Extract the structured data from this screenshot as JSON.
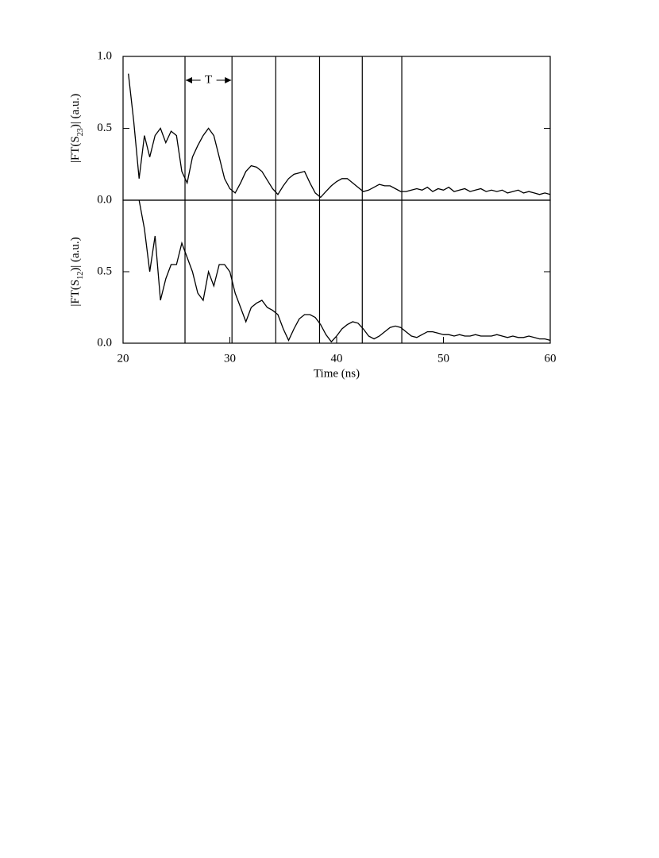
{
  "chart_data": [
    {
      "type": "line",
      "color": "#000000",
      "ylabel": {
        "pre": "|FT(S",
        "sub": "23",
        "post": ")|  (a.u.)"
      },
      "x": [
        20.5,
        21,
        21.5,
        22,
        22.5,
        23,
        23.5,
        24,
        24.5,
        25,
        25.5,
        26,
        26.5,
        27,
        27.5,
        28,
        28.5,
        29,
        29.5,
        30,
        30.5,
        31,
        31.5,
        32,
        32.5,
        33,
        33.5,
        34,
        34.5,
        35,
        35.5,
        36,
        36.5,
        37,
        37.5,
        38,
        38.5,
        39,
        39.5,
        40,
        40.5,
        41,
        41.5,
        42,
        42.5,
        43,
        43.5,
        44,
        44.5,
        45,
        45.5,
        46,
        46.5,
        47,
        47.5,
        48,
        48.5,
        49,
        49.5,
        50,
        50.5,
        51,
        51.5,
        52,
        52.5,
        53,
        53.5,
        54,
        54.5,
        55,
        55.5,
        56,
        56.5,
        57,
        57.5,
        58,
        58.5,
        59,
        59.5,
        60
      ],
      "values": [
        0.88,
        0.55,
        0.15,
        0.45,
        0.3,
        0.45,
        0.5,
        0.4,
        0.48,
        0.45,
        0.2,
        0.12,
        0.3,
        0.38,
        0.45,
        0.5,
        0.45,
        0.3,
        0.15,
        0.08,
        0.05,
        0.12,
        0.2,
        0.24,
        0.23,
        0.2,
        0.14,
        0.08,
        0.04,
        0.1,
        0.15,
        0.18,
        0.19,
        0.2,
        0.12,
        0.05,
        0.02,
        0.06,
        0.1,
        0.13,
        0.15,
        0.15,
        0.12,
        0.09,
        0.06,
        0.07,
        0.09,
        0.11,
        0.1,
        0.1,
        0.08,
        0.06,
        0.06,
        0.07,
        0.08,
        0.07,
        0.09,
        0.06,
        0.08,
        0.07,
        0.09,
        0.06,
        0.07,
        0.08,
        0.06,
        0.07,
        0.08,
        0.06,
        0.07,
        0.06,
        0.07,
        0.05,
        0.06,
        0.07,
        0.05,
        0.06,
        0.05,
        0.04,
        0.05,
        0.04
      ],
      "xlim": [
        20,
        60
      ],
      "ylim": [
        0,
        1.0
      ],
      "yticks": [
        {
          "value": 0,
          "label": "0.0"
        },
        {
          "value": 0.5,
          "label": "0.5"
        },
        {
          "value": 1.0,
          "label": "1.0"
        }
      ],
      "vlines": [
        25.8,
        30.2,
        34.3,
        38.4,
        42.4,
        46.1
      ],
      "annotation": "T"
    },
    {
      "type": "line",
      "color": "#000000",
      "ylabel": {
        "pre": "|FT(S",
        "sub": "12",
        "post": ")|  (a.u.)"
      },
      "xlabel": "Time (ns)",
      "x": [
        20.5,
        21,
        21.5,
        22,
        22.5,
        23,
        23.5,
        24,
        24.5,
        25,
        25.5,
        26,
        26.5,
        27,
        27.5,
        28,
        28.5,
        29,
        29.5,
        30,
        30.5,
        31,
        31.5,
        32,
        32.5,
        33,
        33.5,
        34,
        34.5,
        35,
        35.5,
        36,
        36.5,
        37,
        37.5,
        38,
        38.5,
        39,
        39.5,
        40,
        40.5,
        41,
        41.5,
        42,
        42.5,
        43,
        43.5,
        44,
        44.5,
        45,
        45.5,
        46,
        46.5,
        47,
        47.5,
        48,
        48.5,
        49,
        49.5,
        50,
        50.5,
        51,
        51.5,
        52,
        52.5,
        53,
        53.5,
        54,
        54.5,
        55,
        55.5,
        56,
        56.5,
        57,
        57.5,
        58,
        58.5,
        59,
        59.5,
        60
      ],
      "values": [
        null,
        null,
        1.0,
        0.8,
        0.5,
        0.75,
        0.3,
        0.45,
        0.55,
        0.55,
        0.7,
        0.6,
        0.5,
        0.35,
        0.3,
        0.5,
        0.4,
        0.55,
        0.55,
        0.5,
        0.35,
        0.25,
        0.15,
        0.25,
        0.28,
        0.3,
        0.25,
        0.23,
        0.2,
        0.1,
        0.02,
        0.1,
        0.17,
        0.2,
        0.2,
        0.18,
        0.13,
        0.06,
        0.01,
        0.05,
        0.1,
        0.13,
        0.15,
        0.14,
        0.1,
        0.05,
        0.03,
        0.05,
        0.08,
        0.11,
        0.12,
        0.11,
        0.08,
        0.05,
        0.04,
        0.06,
        0.08,
        0.08,
        0.07,
        0.06,
        0.06,
        0.05,
        0.06,
        0.05,
        0.05,
        0.06,
        0.05,
        0.05,
        0.05,
        0.06,
        0.05,
        0.04,
        0.05,
        0.04,
        0.04,
        0.05,
        0.04,
        0.03,
        0.03,
        0.02
      ],
      "xlim": [
        20,
        60
      ],
      "ylim": [
        0,
        1.0
      ],
      "xticks": [
        20,
        30,
        40,
        50,
        60
      ],
      "yticks": [
        {
          "value": 0,
          "label": "0.0"
        },
        {
          "value": 0.5,
          "label": "0.5"
        }
      ],
      "vlines": [
        25.8,
        30.2,
        34.3,
        38.4,
        42.4,
        46.1
      ]
    }
  ]
}
